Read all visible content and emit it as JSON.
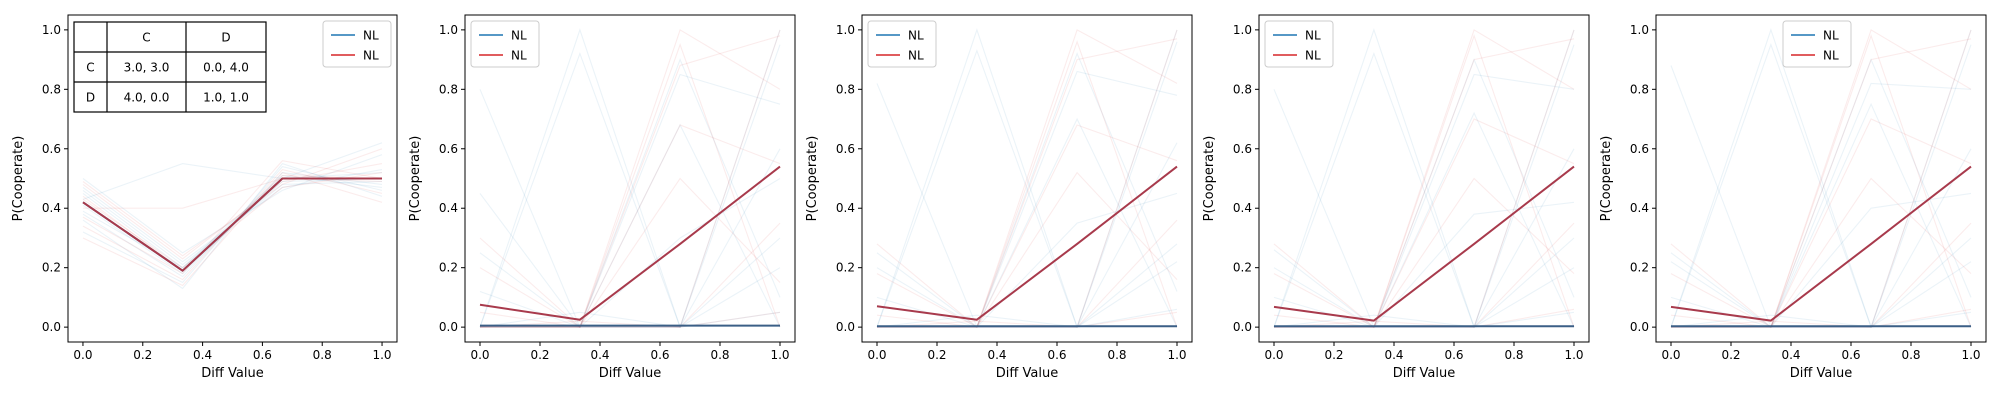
{
  "chart_data": [
    {
      "type": "line",
      "xlabel": "Diff Value",
      "ylabel": "P(Cooperate)",
      "xlim": [
        -0.05,
        1.05
      ],
      "ylim": [
        -0.05,
        1.05
      ],
      "xticks": [
        "0.0",
        "0.2",
        "0.4",
        "0.6",
        "0.8",
        "1.0"
      ],
      "yticks": [
        "0.0",
        "0.2",
        "0.4",
        "0.6",
        "0.8",
        "1.0"
      ],
      "grid": false,
      "legend": {
        "position": "top-right",
        "entries": [
          {
            "label": "NL",
            "color": "#1f77b4"
          },
          {
            "label": "NL",
            "color": "#d62728"
          }
        ]
      },
      "payoff_table": {
        "col_headers": [
          "",
          "C",
          "D"
        ],
        "rows": [
          [
            "C",
            "3.0, 3.0",
            "0.0, 4.0"
          ],
          [
            "D",
            "4.0, 0.0",
            "1.0, 1.0"
          ]
        ]
      },
      "x": [
        0.0,
        0.333,
        0.667,
        1.0
      ],
      "series": [
        {
          "color": "#1f77b4",
          "values": [
            0.42,
            0.19,
            0.5,
            0.5
          ]
        },
        {
          "color": "#d62728",
          "values": [
            0.42,
            0.19,
            0.5,
            0.5
          ]
        }
      ],
      "background_runs": {
        "blue": [
          [
            0.45,
            0.2,
            0.49,
            0.5
          ],
          [
            0.38,
            0.17,
            0.52,
            0.48
          ],
          [
            0.47,
            0.22,
            0.47,
            0.53
          ],
          [
            0.32,
            0.15,
            0.54,
            0.46
          ],
          [
            0.43,
            0.55,
            0.5,
            0.52
          ],
          [
            0.5,
            0.25,
            0.46,
            0.58
          ],
          [
            0.36,
            0.13,
            0.55,
            0.44
          ],
          [
            0.41,
            0.18,
            0.5,
            0.62
          ],
          [
            0.46,
            0.21,
            0.48,
            0.49
          ],
          [
            0.39,
            0.2,
            0.51,
            0.47
          ]
        ],
        "red": [
          [
            0.44,
            0.19,
            0.51,
            0.5
          ],
          [
            0.34,
            0.16,
            0.53,
            0.45
          ],
          [
            0.48,
            0.23,
            0.49,
            0.55
          ],
          [
            0.4,
            0.4,
            0.5,
            0.49
          ],
          [
            0.3,
            0.14,
            0.52,
            0.42
          ],
          [
            0.43,
            0.2,
            0.47,
            0.52
          ],
          [
            0.37,
            0.18,
            0.56,
            0.5
          ],
          [
            0.49,
            0.24,
            0.48,
            0.6
          ]
        ]
      }
    },
    {
      "type": "line",
      "xlabel": "Diff Value",
      "ylabel": "P(Cooperate)",
      "xlim": [
        -0.05,
        1.05
      ],
      "ylim": [
        -0.05,
        1.05
      ],
      "xticks": [
        "0.0",
        "0.2",
        "0.4",
        "0.6",
        "0.8",
        "1.0"
      ],
      "yticks": [
        "0.0",
        "0.2",
        "0.4",
        "0.6",
        "0.8",
        "1.0"
      ],
      "grid": false,
      "legend": {
        "position": "top-left",
        "entries": [
          {
            "label": "NL",
            "color": "#1f77b4"
          },
          {
            "label": "NL",
            "color": "#d62728"
          }
        ]
      },
      "x": [
        0.0,
        0.333,
        0.667,
        1.0
      ],
      "series": [
        {
          "color": "#1f77b4",
          "values": [
            0.005,
            0.005,
            0.005,
            0.005
          ]
        },
        {
          "color": "#d62728",
          "values": [
            0.075,
            0.025,
            0.28,
            0.54
          ]
        }
      ],
      "background_runs": {
        "blue": [
          [
            0.8,
            0.0,
            0.0,
            1.0
          ],
          [
            0.0,
            0.92,
            0.0,
            0.05
          ],
          [
            0.45,
            0.0,
            0.0,
            0.6
          ],
          [
            0.0,
            0.0,
            0.68,
            0.0
          ],
          [
            0.25,
            0.0,
            0.9,
            0.1
          ],
          [
            0.0,
            1.0,
            0.0,
            0.3
          ],
          [
            0.0,
            0.0,
            0.85,
            0.75
          ],
          [
            0.12,
            0.0,
            0.0,
            0.95
          ],
          [
            0.0,
            0.0,
            0.3,
            0.5
          ],
          [
            0.0,
            0.05,
            0.0,
            0.2
          ]
        ],
        "red": [
          [
            0.0,
            0.0,
            1.0,
            0.8
          ],
          [
            0.0,
            0.0,
            0.68,
            0.55
          ],
          [
            0.3,
            0.0,
            0.0,
            1.0
          ],
          [
            0.0,
            0.0,
            0.95,
            0.0
          ],
          [
            0.05,
            0.0,
            0.88,
            0.98
          ],
          [
            0.0,
            0.02,
            0.0,
            0.35
          ],
          [
            0.0,
            0.0,
            0.5,
            0.15
          ],
          [
            0.2,
            0.0,
            0.0,
            0.05
          ]
        ]
      }
    },
    {
      "type": "line",
      "xlabel": "Diff Value",
      "ylabel": "P(Cooperate)",
      "xlim": [
        -0.05,
        1.05
      ],
      "ylim": [
        -0.05,
        1.05
      ],
      "xticks": [
        "0.0",
        "0.2",
        "0.4",
        "0.6",
        "0.8",
        "1.0"
      ],
      "yticks": [
        "0.0",
        "0.2",
        "0.4",
        "0.6",
        "0.8",
        "1.0"
      ],
      "grid": false,
      "legend": {
        "position": "top-left",
        "entries": [
          {
            "label": "NL",
            "color": "#1f77b4"
          },
          {
            "label": "NL",
            "color": "#d62728"
          }
        ]
      },
      "x": [
        0.0,
        0.333,
        0.667,
        1.0
      ],
      "series": [
        {
          "color": "#1f77b4",
          "values": [
            0.003,
            0.003,
            0.003,
            0.003
          ]
        },
        {
          "color": "#d62728",
          "values": [
            0.07,
            0.025,
            0.28,
            0.54
          ]
        }
      ],
      "background_runs": {
        "blue": [
          [
            0.82,
            0.0,
            0.0,
            1.0
          ],
          [
            0.0,
            0.93,
            0.0,
            0.06
          ],
          [
            0.25,
            0.0,
            0.0,
            0.62
          ],
          [
            0.0,
            0.0,
            0.7,
            0.0
          ],
          [
            0.2,
            0.0,
            0.92,
            0.12
          ],
          [
            0.0,
            1.0,
            0.0,
            0.28
          ],
          [
            0.0,
            0.0,
            0.86,
            0.78
          ],
          [
            0.1,
            0.0,
            0.0,
            0.96
          ],
          [
            0.0,
            0.0,
            0.35,
            0.45
          ],
          [
            0.0,
            0.04,
            0.0,
            0.22
          ]
        ],
        "red": [
          [
            0.0,
            0.0,
            1.0,
            0.82
          ],
          [
            0.0,
            0.0,
            0.68,
            0.56
          ],
          [
            0.28,
            0.0,
            0.0,
            1.0
          ],
          [
            0.0,
            0.0,
            0.96,
            0.0
          ],
          [
            0.04,
            0.0,
            0.9,
            0.97
          ],
          [
            0.0,
            0.02,
            0.0,
            0.36
          ],
          [
            0.0,
            0.0,
            0.52,
            0.16
          ],
          [
            0.18,
            0.0,
            0.0,
            0.05
          ]
        ]
      }
    },
    {
      "type": "line",
      "xlabel": "Diff Value",
      "ylabel": "P(Cooperate)",
      "xlim": [
        -0.05,
        1.05
      ],
      "ylim": [
        -0.05,
        1.05
      ],
      "xticks": [
        "0.0",
        "0.2",
        "0.4",
        "0.6",
        "0.8",
        "1.0"
      ],
      "yticks": [
        "0.0",
        "0.2",
        "0.4",
        "0.6",
        "0.8",
        "1.0"
      ],
      "grid": false,
      "legend": {
        "position": "top-left",
        "entries": [
          {
            "label": "NL",
            "color": "#1f77b4"
          },
          {
            "label": "NL",
            "color": "#d62728"
          }
        ]
      },
      "x": [
        0.0,
        0.333,
        0.667,
        1.0
      ],
      "series": [
        {
          "color": "#1f77b4",
          "values": [
            0.003,
            0.003,
            0.003,
            0.003
          ]
        },
        {
          "color": "#d62728",
          "values": [
            0.068,
            0.022,
            0.28,
            0.54
          ]
        }
      ],
      "background_runs": {
        "blue": [
          [
            0.8,
            0.0,
            0.0,
            1.0
          ],
          [
            0.0,
            0.92,
            0.0,
            0.05
          ],
          [
            0.26,
            0.0,
            0.0,
            0.6
          ],
          [
            0.0,
            0.0,
            0.72,
            0.0
          ],
          [
            0.2,
            0.0,
            0.9,
            0.1
          ],
          [
            0.0,
            1.0,
            0.0,
            0.3
          ],
          [
            0.0,
            0.0,
            0.85,
            0.8
          ],
          [
            0.1,
            0.0,
            0.0,
            0.95
          ],
          [
            0.0,
            0.0,
            0.38,
            0.42
          ],
          [
            0.0,
            0.04,
            0.0,
            0.2
          ]
        ],
        "red": [
          [
            0.0,
            0.0,
            1.0,
            0.8
          ],
          [
            0.0,
            0.0,
            0.7,
            0.55
          ],
          [
            0.28,
            0.0,
            0.0,
            1.0
          ],
          [
            0.0,
            0.0,
            0.98,
            0.0
          ],
          [
            0.04,
            0.0,
            0.9,
            0.97
          ],
          [
            0.0,
            0.02,
            0.0,
            0.35
          ],
          [
            0.0,
            0.0,
            0.5,
            0.18
          ],
          [
            0.18,
            0.0,
            0.0,
            0.06
          ]
        ]
      }
    },
    {
      "type": "line",
      "xlabel": "Diff Value",
      "ylabel": "P(Cooperate)",
      "xlim": [
        -0.05,
        1.05
      ],
      "ylim": [
        -0.05,
        1.05
      ],
      "xticks": [
        "0.0",
        "0.2",
        "0.4",
        "0.6",
        "0.8",
        "1.0"
      ],
      "yticks": [
        "0.0",
        "0.2",
        "0.4",
        "0.6",
        "0.8",
        "1.0"
      ],
      "grid": false,
      "legend": {
        "position": "top-center",
        "entries": [
          {
            "label": "NL",
            "color": "#1f77b4"
          },
          {
            "label": "NL",
            "color": "#d62728"
          }
        ]
      },
      "x": [
        0.0,
        0.333,
        0.667,
        1.0
      ],
      "series": [
        {
          "color": "#1f77b4",
          "values": [
            0.003,
            0.003,
            0.003,
            0.003
          ]
        },
        {
          "color": "#d62728",
          "values": [
            0.068,
            0.022,
            0.28,
            0.54
          ]
        }
      ],
      "background_runs": {
        "blue": [
          [
            0.88,
            0.0,
            0.0,
            1.0
          ],
          [
            0.0,
            0.95,
            0.0,
            0.05
          ],
          [
            0.25,
            0.0,
            0.0,
            0.6
          ],
          [
            0.0,
            0.0,
            0.75,
            0.0
          ],
          [
            0.22,
            0.0,
            0.9,
            0.1
          ],
          [
            0.0,
            1.0,
            0.0,
            0.3
          ],
          [
            0.0,
            0.0,
            0.82,
            0.8
          ],
          [
            0.1,
            0.0,
            0.0,
            0.95
          ],
          [
            0.0,
            0.0,
            0.4,
            0.45
          ],
          [
            0.0,
            0.04,
            0.0,
            0.22
          ]
        ],
        "red": [
          [
            0.0,
            0.0,
            1.0,
            0.8
          ],
          [
            0.0,
            0.0,
            0.7,
            0.55
          ],
          [
            0.28,
            0.0,
            0.0,
            1.0
          ],
          [
            0.0,
            0.0,
            0.98,
            0.0
          ],
          [
            0.04,
            0.0,
            0.9,
            0.97
          ],
          [
            0.0,
            0.02,
            0.0,
            0.35
          ],
          [
            0.0,
            0.0,
            0.5,
            0.18
          ],
          [
            0.18,
            0.0,
            0.0,
            0.06
          ]
        ]
      }
    }
  ]
}
